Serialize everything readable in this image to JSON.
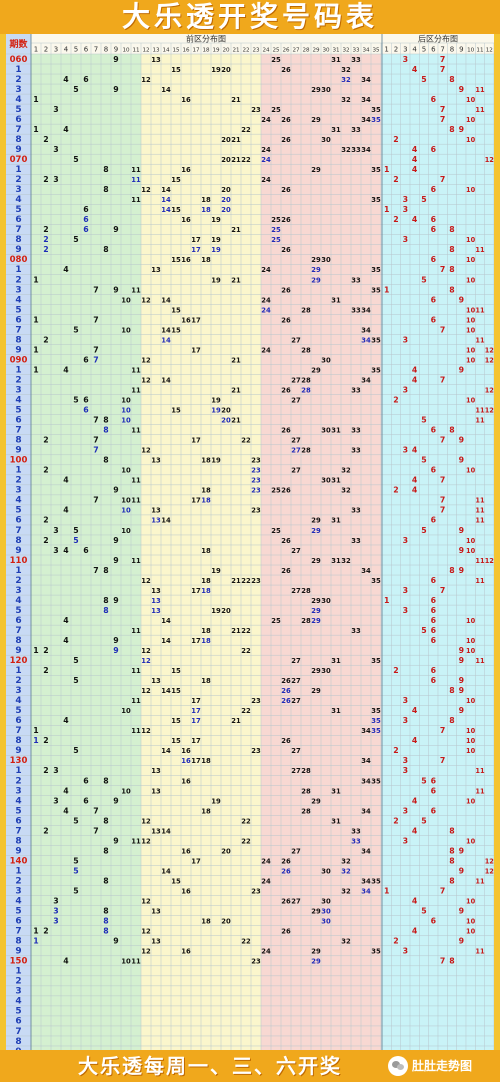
{
  "header": {
    "title": "大乐透开奖号码表",
    "period_header": "期数",
    "front_zone_label": "前区分布图",
    "back_zone_label": "后区分布图",
    "front_numbers": [
      "1",
      "2",
      "3",
      "4",
      "5",
      "6",
      "7",
      "8",
      "9",
      "10",
      "11",
      "12",
      "13",
      "14",
      "15",
      "16",
      "17",
      "18",
      "19",
      "20",
      "21",
      "22",
      "23",
      "24",
      "25",
      "26",
      "27",
      "28",
      "29",
      "30",
      "31",
      "32",
      "33",
      "34",
      "35"
    ],
    "back_numbers": [
      "1",
      "2",
      "3",
      "4",
      "5",
      "6",
      "7",
      "8",
      "9",
      "10",
      "11",
      "12"
    ]
  },
  "colors": {
    "zone1_bg": "#d4f0d0",
    "zone2_bg": "#fbf6cc",
    "zone3_bg": "#f8d8d2",
    "back_bg": "#c9f3f7",
    "period_bg": "#c8daf4",
    "grid_line": "#b8c6cc",
    "number_color": "#111111",
    "repeat_color": "#1f2bb8",
    "back_number_color": "#c81818",
    "period_color": "#1f3fb5",
    "decade_color": "#d42010"
  },
  "draws": [
    {
      "period": "060",
      "front": [
        9,
        13,
        25,
        31,
        33
      ],
      "back": [
        3,
        7
      ]
    },
    {
      "period": "1",
      "front": [
        15,
        19,
        20,
        26,
        32
      ],
      "back": [
        4,
        7
      ]
    },
    {
      "period": "2",
      "front": [
        4,
        6,
        12,
        32,
        34
      ],
      "back": [
        5,
        8
      ]
    },
    {
      "period": "3",
      "front": [
        5,
        9,
        14,
        29,
        30
      ],
      "back": [
        9,
        11
      ]
    },
    {
      "period": "4",
      "front": [
        1,
        16,
        21,
        32,
        34
      ],
      "back": [
        6,
        10
      ]
    },
    {
      "period": "5",
      "front": [
        3,
        23,
        25,
        35
      ],
      "back": [
        7,
        11
      ]
    },
    {
      "period": "6",
      "front": [
        24,
        26,
        29,
        34,
        35
      ],
      "back": [
        7,
        10
      ]
    },
    {
      "period": "7",
      "front": [
        1,
        4,
        22,
        31,
        33
      ],
      "back": [
        8,
        9
      ]
    },
    {
      "period": "8",
      "front": [
        2,
        20,
        21,
        26,
        30
      ],
      "back": [
        2,
        10
      ]
    },
    {
      "period": "9",
      "front": [
        3,
        24,
        32,
        33,
        34
      ],
      "back": [
        4,
        6
      ]
    },
    {
      "period": "070",
      "front": [
        5,
        20,
        21,
        22,
        24
      ],
      "back": [
        4,
        12
      ]
    },
    {
      "period": "1",
      "front": [
        8,
        11,
        16,
        29,
        35
      ],
      "back": [
        1,
        4
      ]
    },
    {
      "period": "2",
      "front": [
        2,
        3,
        11,
        15,
        24
      ],
      "back": [
        2,
        7
      ]
    },
    {
      "period": "3",
      "front": [
        8,
        12,
        14,
        20,
        26
      ],
      "back": [
        6,
        10
      ]
    },
    {
      "period": "4",
      "front": [
        11,
        14,
        18,
        20,
        35
      ],
      "back": [
        3,
        5
      ]
    },
    {
      "period": "5",
      "front": [
        6,
        14,
        15,
        18,
        20
      ],
      "back": [
        1,
        3
      ]
    },
    {
      "period": "6",
      "front": [
        6,
        16,
        19,
        25,
        26
      ],
      "back": [
        2,
        4,
        6
      ]
    },
    {
      "period": "7",
      "front": [
        2,
        6,
        9,
        21,
        25
      ],
      "back": [
        6,
        8
      ]
    },
    {
      "period": "8",
      "front": [
        2,
        5,
        17,
        19,
        25
      ],
      "back": [
        3,
        10
      ]
    },
    {
      "period": "9",
      "front": [
        2,
        8,
        17,
        19,
        26
      ],
      "back": [
        8,
        11
      ]
    },
    {
      "period": "080",
      "front": [
        15,
        16,
        18,
        29,
        30
      ],
      "back": [
        6,
        10
      ]
    },
    {
      "period": "1",
      "front": [
        4,
        13,
        24,
        29,
        35
      ],
      "back": [
        7,
        8
      ]
    },
    {
      "period": "2",
      "front": [
        1,
        19,
        21,
        29,
        33
      ],
      "back": [
        5,
        10
      ]
    },
    {
      "period": "3",
      "front": [
        7,
        9,
        11,
        26,
        35
      ],
      "back": [
        1,
        8
      ]
    },
    {
      "period": "4",
      "front": [
        10,
        12,
        14,
        24,
        31
      ],
      "back": [
        6,
        9
      ]
    },
    {
      "period": "5",
      "front": [
        15,
        24,
        28,
        33,
        34
      ],
      "back": [
        10,
        11
      ]
    },
    {
      "period": "6",
      "front": [
        1,
        7,
        16,
        17,
        26
      ],
      "back": [
        6,
        10
      ]
    },
    {
      "period": "7",
      "front": [
        5,
        10,
        14,
        15,
        34
      ],
      "back": [
        7,
        10
      ]
    },
    {
      "period": "8",
      "front": [
        2,
        14,
        27,
        34,
        35
      ],
      "back": [
        3,
        11
      ]
    },
    {
      "period": "9",
      "front": [
        1,
        7,
        17,
        24,
        28
      ],
      "back": [
        10,
        12
      ]
    },
    {
      "period": "090",
      "front": [
        6,
        7,
        12,
        21,
        30
      ],
      "back": [
        10,
        12
      ]
    },
    {
      "period": "1",
      "front": [
        1,
        4,
        11,
        29,
        35
      ],
      "back": [
        4,
        9
      ]
    },
    {
      "period": "2",
      "front": [
        12,
        14,
        27,
        28,
        34
      ],
      "back": [
        4,
        7
      ]
    },
    {
      "period": "3",
      "front": [
        11,
        21,
        26,
        28,
        33
      ],
      "back": [
        3,
        12
      ]
    },
    {
      "period": "4",
      "front": [
        5,
        6,
        10,
        19,
        27
      ],
      "back": [
        2,
        10
      ]
    },
    {
      "period": "5",
      "front": [
        6,
        10,
        15,
        19,
        20
      ],
      "back": [
        11,
        12
      ]
    },
    {
      "period": "6",
      "front": [
        7,
        8,
        10,
        20,
        21
      ],
      "back": [
        5,
        11
      ]
    },
    {
      "period": "7",
      "front": [
        8,
        11,
        26,
        30,
        31,
        33
      ],
      "back": [
        6,
        8
      ]
    },
    {
      "period": "8",
      "front": [
        2,
        7,
        17,
        22,
        27
      ],
      "back": [
        7,
        9
      ]
    },
    {
      "period": "9",
      "front": [
        7,
        12,
        27,
        28,
        33
      ],
      "back": [
        3,
        4
      ]
    },
    {
      "period": "100",
      "front": [
        8,
        13,
        18,
        19,
        23
      ],
      "back": [
        5,
        9
      ]
    },
    {
      "period": "1",
      "front": [
        2,
        10,
        23,
        27,
        32
      ],
      "back": [
        6,
        10
      ]
    },
    {
      "period": "2",
      "front": [
        4,
        11,
        23,
        30,
        31
      ],
      "back": [
        4,
        7
      ]
    },
    {
      "period": "3",
      "front": [
        9,
        18,
        23,
        25,
        26,
        32
      ],
      "back": [
        2,
        4
      ]
    },
    {
      "period": "4",
      "front": [
        7,
        10,
        11,
        17,
        18
      ],
      "back": [
        7,
        11
      ]
    },
    {
      "period": "5",
      "front": [
        4,
        10,
        13,
        23,
        33
      ],
      "back": [
        7,
        11
      ]
    },
    {
      "period": "6",
      "front": [
        2,
        13,
        14,
        29,
        31
      ],
      "back": [
        6,
        11
      ]
    },
    {
      "period": "7",
      "front": [
        3,
        5,
        10,
        25,
        29
      ],
      "back": [
        5,
        9
      ]
    },
    {
      "period": "8",
      "front": [
        2,
        5,
        9,
        26,
        33
      ],
      "back": [
        3,
        10
      ]
    },
    {
      "period": "9",
      "front": [
        3,
        4,
        6,
        18,
        27
      ],
      "back": [
        9,
        10
      ]
    },
    {
      "period": "110",
      "front": [
        9,
        11,
        29,
        31,
        32
      ],
      "back": [
        11,
        12
      ]
    },
    {
      "period": "1",
      "front": [
        7,
        8,
        19,
        26,
        34
      ],
      "back": [
        8,
        9
      ]
    },
    {
      "period": "2",
      "front": [
        12,
        18,
        21,
        22,
        23,
        35
      ],
      "back": [
        6,
        11
      ]
    },
    {
      "period": "3",
      "front": [
        13,
        17,
        18,
        27,
        28
      ],
      "back": [
        3,
        7
      ]
    },
    {
      "period": "4",
      "front": [
        8,
        9,
        13,
        29,
        30
      ],
      "back": [
        1,
        6
      ]
    },
    {
      "period": "5",
      "front": [
        8,
        13,
        19,
        20,
        29
      ],
      "back": [
        3,
        6
      ]
    },
    {
      "period": "6",
      "front": [
        4,
        14,
        25,
        28,
        29
      ],
      "back": [
        6,
        10
      ]
    },
    {
      "period": "7",
      "front": [
        11,
        18,
        21,
        22,
        33
      ],
      "back": [
        5,
        6
      ]
    },
    {
      "period": "8",
      "front": [
        4,
        9,
        14,
        17,
        18
      ],
      "back": [
        6,
        10
      ]
    },
    {
      "period": "9",
      "front": [
        1,
        2,
        9,
        12,
        22
      ],
      "back": [
        9,
        10
      ]
    },
    {
      "period": "120",
      "front": [
        5,
        12,
        27,
        31,
        35
      ],
      "back": [
        9,
        11
      ]
    },
    {
      "period": "1",
      "front": [
        2,
        11,
        15,
        29,
        30
      ],
      "back": [
        2,
        6
      ]
    },
    {
      "period": "2",
      "front": [
        5,
        13,
        18,
        26,
        27
      ],
      "back": [
        6,
        9
      ]
    },
    {
      "period": "3",
      "front": [
        12,
        14,
        15,
        26,
        29
      ],
      "back": [
        8,
        9
      ]
    },
    {
      "period": "4",
      "front": [
        11,
        17,
        23,
        26,
        27
      ],
      "back": [
        3,
        10
      ]
    },
    {
      "period": "5",
      "front": [
        10,
        17,
        22,
        31,
        35
      ],
      "back": [
        4,
        9
      ]
    },
    {
      "period": "6",
      "front": [
        4,
        15,
        17,
        21,
        35
      ],
      "back": [
        3,
        8
      ]
    },
    {
      "period": "7",
      "front": [
        1,
        11,
        12,
        34,
        35
      ],
      "back": [
        7,
        10
      ]
    },
    {
      "period": "8",
      "front": [
        1,
        2,
        15,
        17,
        26
      ],
      "back": [
        4,
        10
      ]
    },
    {
      "period": "9",
      "front": [
        5,
        14,
        16,
        23,
        27
      ],
      "back": [
        2,
        10
      ]
    },
    {
      "period": "130",
      "front": [
        16,
        17,
        18,
        34
      ],
      "back": [
        3,
        7
      ]
    },
    {
      "period": "1",
      "front": [
        2,
        3,
        13,
        27,
        28
      ],
      "back": [
        3,
        11
      ]
    },
    {
      "period": "2",
      "front": [
        6,
        8,
        16,
        34,
        35
      ],
      "back": [
        5,
        6
      ]
    },
    {
      "period": "3",
      "front": [
        4,
        10,
        13,
        28,
        31
      ],
      "back": [
        6,
        11
      ]
    },
    {
      "period": "4",
      "front": [
        3,
        6,
        9,
        19,
        29
      ],
      "back": [
        4,
        10
      ]
    },
    {
      "period": "5",
      "front": [
        4,
        7,
        18,
        28,
        34
      ],
      "back": [
        3,
        6
      ]
    },
    {
      "period": "6",
      "front": [
        5,
        8,
        12,
        22,
        31
      ],
      "back": [
        2,
        5
      ]
    },
    {
      "period": "7",
      "front": [
        2,
        7,
        13,
        14,
        33
      ],
      "back": [
        4,
        8
      ]
    },
    {
      "period": "8",
      "front": [
        9,
        11,
        12,
        22,
        33
      ],
      "back": [
        3,
        10
      ]
    },
    {
      "period": "9",
      "front": [
        8,
        16,
        20,
        27,
        34
      ],
      "back": [
        8,
        9
      ]
    },
    {
      "period": "140",
      "front": [
        5,
        17,
        24,
        26,
        32
      ],
      "back": [
        8,
        12
      ]
    },
    {
      "period": "1",
      "front": [
        5,
        14,
        26,
        30,
        32
      ],
      "back": [
        9,
        12
      ]
    },
    {
      "period": "2",
      "front": [
        8,
        15,
        24,
        34,
        35
      ],
      "back": [
        8,
        11
      ]
    },
    {
      "period": "3",
      "front": [
        5,
        16,
        23,
        32,
        34
      ],
      "back": [
        1,
        7
      ]
    },
    {
      "period": "4",
      "front": [
        3,
        12,
        26,
        27,
        30
      ],
      "back": [
        4,
        10
      ]
    },
    {
      "period": "5",
      "front": [
        3,
        8,
        13,
        29,
        30
      ],
      "back": [
        5,
        9
      ]
    },
    {
      "period": "6",
      "front": [
        3,
        8,
        18,
        20,
        30
      ],
      "back": [
        6,
        10
      ]
    },
    {
      "period": "7",
      "front": [
        1,
        2,
        8,
        12,
        26
      ],
      "back": [
        4,
        10
      ]
    },
    {
      "period": "8",
      "front": [
        1,
        9,
        13,
        22,
        32
      ],
      "back": [
        2,
        9
      ]
    },
    {
      "period": "9",
      "front": [
        12,
        16,
        24,
        29,
        35
      ],
      "back": [
        3,
        11
      ]
    },
    {
      "period": "150",
      "front": [
        4,
        10,
        11,
        23,
        29
      ],
      "back": [
        7,
        8
      ]
    },
    {
      "period": "1",
      "front": [],
      "back": []
    },
    {
      "period": "2",
      "front": [],
      "back": []
    },
    {
      "period": "3",
      "front": [],
      "back": []
    },
    {
      "period": "4",
      "front": [],
      "back": []
    },
    {
      "period": "5",
      "front": [],
      "back": []
    },
    {
      "period": "6",
      "front": [],
      "back": []
    },
    {
      "period": "7",
      "front": [],
      "back": []
    },
    {
      "period": "8",
      "front": [],
      "back": []
    },
    {
      "period": "9",
      "front": [],
      "back": []
    }
  ],
  "footer": {
    "schedule": "大乐透每周一、三、六开奖",
    "brand": "肚肚走势图",
    "logo_icon": "wechat-icon"
  }
}
